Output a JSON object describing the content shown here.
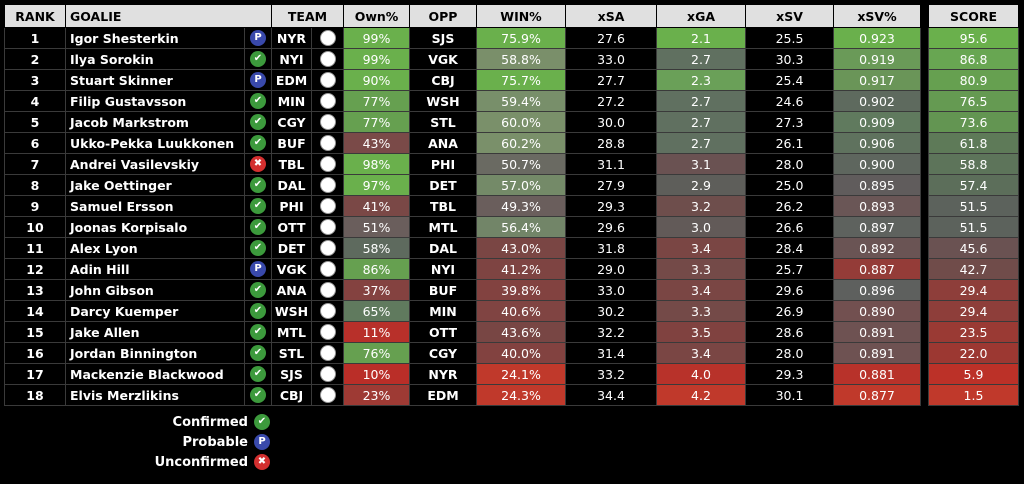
{
  "headers": {
    "rank": "RANK",
    "goalie": "GOALIE",
    "team": "TEAM",
    "own": "Own%",
    "opp": "OPP",
    "win": "WIN%",
    "xsa": "xSA",
    "xga": "xGA",
    "xsv": "xSV",
    "xsvpct": "xSV%",
    "score": "SCORE"
  },
  "colors": {
    "high": "#6ab04c",
    "mid": "#5a5a5a",
    "low": "#c0392b",
    "confirmed": "#3c9a3c",
    "probable": "#3949ab",
    "unconfirmed": "#d32f2f"
  },
  "rows": [
    {
      "rank": "1",
      "goalie": "Igor Shesterkin",
      "status": "probable",
      "team": "NYR",
      "own": "99%",
      "opp": "SJS",
      "win": "75.9%",
      "xsa": "27.6",
      "xga": "2.1",
      "xsv": "25.5",
      "xsvpct": "0.923",
      "score": "95.6",
      "c_own": "#6ab04c",
      "c_win": "#6ab04c",
      "c_xga": "#6ab04c",
      "c_xsvpct": "#6ab04c",
      "c_score": "#6ab04c"
    },
    {
      "rank": "2",
      "goalie": "Ilya Sorokin",
      "status": "confirmed",
      "team": "NYI",
      "own": "99%",
      "opp": "VGK",
      "win": "58.8%",
      "xsa": "33.0",
      "xga": "2.7",
      "xsv": "30.3",
      "xsvpct": "0.919",
      "score": "86.8",
      "c_own": "#6ab04c",
      "c_win": "#7a8f6a",
      "c_xga": "#607060",
      "c_xsvpct": "#6a9a58",
      "c_score": "#68a652"
    },
    {
      "rank": "3",
      "goalie": "Stuart Skinner",
      "status": "probable",
      "team": "EDM",
      "own": "90%",
      "opp": "CBJ",
      "win": "75.7%",
      "xsa": "27.7",
      "xga": "2.3",
      "xsv": "25.4",
      "xsvpct": "0.917",
      "score": "80.9",
      "c_own": "#6ab04c",
      "c_win": "#6ab04c",
      "c_xga": "#6aa058",
      "c_xsvpct": "#6a9558",
      "c_score": "#66a050"
    },
    {
      "rank": "4",
      "goalie": "Filip Gustavsson",
      "status": "confirmed",
      "team": "MIN",
      "own": "77%",
      "opp": "WSH",
      "win": "59.4%",
      "xsa": "27.2",
      "xga": "2.7",
      "xsv": "24.6",
      "xsvpct": "0.902",
      "score": "76.5",
      "c_own": "#66a050",
      "c_win": "#788f6a",
      "c_xga": "#607060",
      "c_xsvpct": "#5e6a5e",
      "c_score": "#659a52"
    },
    {
      "rank": "5",
      "goalie": "Jacob Markstrom",
      "status": "confirmed",
      "team": "CGY",
      "own": "77%",
      "opp": "STL",
      "win": "60.0%",
      "xsa": "30.0",
      "xga": "2.7",
      "xsv": "27.3",
      "xsvpct": "0.909",
      "score": "73.6",
      "c_own": "#66a050",
      "c_win": "#7a906a",
      "c_xga": "#607060",
      "c_xsvpct": "#607a5e",
      "c_score": "#639552"
    },
    {
      "rank": "6",
      "goalie": "Ukko-Pekka Luukkonen",
      "status": "confirmed",
      "team": "BUF",
      "own": "43%",
      "opp": "ANA",
      "win": "60.2%",
      "xsa": "28.8",
      "xga": "2.7",
      "xsv": "26.1",
      "xsvpct": "0.906",
      "score": "61.8",
      "c_own": "#7a4a48",
      "c_win": "#7a906a",
      "c_xga": "#607060",
      "c_xsvpct": "#5f725e",
      "c_score": "#5e7a58"
    },
    {
      "rank": "7",
      "goalie": "Andrei Vasilevskiy",
      "status": "unconfirmed",
      "team": "TBL",
      "own": "98%",
      "opp": "PHI",
      "win": "50.7%",
      "xsa": "31.1",
      "xga": "3.1",
      "xsv": "28.0",
      "xsvpct": "0.900",
      "score": "58.8",
      "c_own": "#6ab04c",
      "c_win": "#6a6a62",
      "c_xga": "#6a5252",
      "c_xsvpct": "#5e665e",
      "c_score": "#5d745a"
    },
    {
      "rank": "8",
      "goalie": "Jake Oettinger",
      "status": "confirmed",
      "team": "DAL",
      "own": "97%",
      "opp": "DET",
      "win": "57.0%",
      "xsa": "27.9",
      "xga": "2.9",
      "xsv": "25.0",
      "xsvpct": "0.895",
      "score": "57.4",
      "c_own": "#6ab04c",
      "c_win": "#748a68",
      "c_xga": "#5e5e5a",
      "c_xsvpct": "#605c5c",
      "c_score": "#5c6e5a"
    },
    {
      "rank": "9",
      "goalie": "Samuel Ersson",
      "status": "confirmed",
      "team": "PHI",
      "own": "41%",
      "opp": "TBL",
      "win": "49.3%",
      "xsa": "29.3",
      "xga": "3.2",
      "xsv": "26.2",
      "xsvpct": "0.893",
      "score": "51.5",
      "c_own": "#7a4846",
      "c_win": "#6a5e5c",
      "c_xga": "#6e4e4c",
      "c_xsvpct": "#6a5656",
      "c_score": "#5c625c"
    },
    {
      "rank": "10",
      "goalie": "Joonas Korpisalo",
      "status": "confirmed",
      "team": "OTT",
      "own": "51%",
      "opp": "MTL",
      "win": "56.4%",
      "xsa": "29.6",
      "xga": "3.0",
      "xsv": "26.6",
      "xsvpct": "0.897",
      "score": "51.5",
      "c_own": "#6a5e5c",
      "c_win": "#728568",
      "c_xga": "#625a58",
      "c_xsvpct": "#5e625e",
      "c_score": "#5c625c"
    },
    {
      "rank": "11",
      "goalie": "Alex Lyon",
      "status": "confirmed",
      "team": "DET",
      "own": "58%",
      "opp": "DAL",
      "win": "43.0%",
      "xsa": "31.8",
      "xga": "3.4",
      "xsv": "28.4",
      "xsvpct": "0.892",
      "score": "45.6",
      "c_own": "#5e6a5e",
      "c_win": "#7a4644",
      "c_xga": "#7a4644",
      "c_xsvpct": "#6a5454",
      "c_score": "#6a5252"
    },
    {
      "rank": "12",
      "goalie": "Adin Hill",
      "status": "probable",
      "team": "VGK",
      "own": "86%",
      "opp": "NYI",
      "win": "41.2%",
      "xsa": "29.0",
      "xga": "3.3",
      "xsv": "25.7",
      "xsvpct": "0.887",
      "score": "42.7",
      "c_own": "#66a050",
      "c_win": "#7e4442",
      "c_xga": "#744a48",
      "c_xsvpct": "#943c38",
      "c_score": "#704c4a"
    },
    {
      "rank": "13",
      "goalie": "John Gibson",
      "status": "confirmed",
      "team": "ANA",
      "own": "37%",
      "opp": "BUF",
      "win": "39.8%",
      "xsa": "33.0",
      "xga": "3.4",
      "xsv": "29.6",
      "xsvpct": "0.896",
      "score": "29.4",
      "c_own": "#844240",
      "c_win": "#824240",
      "c_xga": "#7a4644",
      "c_xsvpct": "#5e605e",
      "c_score": "#8e3e3a"
    },
    {
      "rank": "14",
      "goalie": "Darcy Kuemper",
      "status": "confirmed",
      "team": "WSH",
      "own": "65%",
      "opp": "MIN",
      "win": "40.6%",
      "xsa": "30.2",
      "xga": "3.3",
      "xsv": "26.9",
      "xsvpct": "0.890",
      "score": "29.4",
      "c_own": "#607a5e",
      "c_win": "#804442",
      "c_xga": "#744a48",
      "c_xsvpct": "#725050",
      "c_score": "#8e3e3a"
    },
    {
      "rank": "15",
      "goalie": "Jake Allen",
      "status": "confirmed",
      "team": "MTL",
      "own": "11%",
      "opp": "OTT",
      "win": "43.6%",
      "xsa": "32.2",
      "xga": "3.5",
      "xsv": "28.6",
      "xsvpct": "0.891",
      "score": "23.5",
      "c_own": "#b8302a",
      "c_win": "#784644",
      "c_xga": "#804240",
      "c_xsvpct": "#6e5252",
      "c_score": "#9a3a34"
    },
    {
      "rank": "16",
      "goalie": "Jordan Binnington",
      "status": "confirmed",
      "team": "STL",
      "own": "76%",
      "opp": "CGY",
      "win": "40.0%",
      "xsa": "31.4",
      "xga": "3.4",
      "xsv": "28.0",
      "xsvpct": "0.891",
      "score": "22.0",
      "c_own": "#66a050",
      "c_win": "#824240",
      "c_xga": "#7a4644",
      "c_xsvpct": "#6e5252",
      "c_score": "#9c3832"
    },
    {
      "rank": "17",
      "goalie": "Mackenzie Blackwood",
      "status": "confirmed",
      "team": "SJS",
      "own": "10%",
      "opp": "NYR",
      "win": "24.1%",
      "xsa": "33.2",
      "xga": "4.0",
      "xsv": "29.3",
      "xsvpct": "0.881",
      "score": "5.9",
      "c_own": "#ba2e28",
      "c_win": "#c0392b",
      "c_xga": "#b8322a",
      "c_xsvpct": "#b8322a",
      "c_score": "#bc3128"
    },
    {
      "rank": "18",
      "goalie": "Elvis Merzlikins",
      "status": "confirmed",
      "team": "CBJ",
      "own": "23%",
      "opp": "EDM",
      "win": "24.3%",
      "xsa": "34.4",
      "xga": "4.2",
      "xsv": "30.1",
      "xsvpct": "0.877",
      "score": "1.5",
      "c_own": "#9e3a34",
      "c_win": "#c0392b",
      "c_xga": "#c0392b",
      "c_xsvpct": "#c0392b",
      "c_score": "#c0392b"
    }
  ],
  "legend": [
    {
      "label": "Confirmed",
      "status": "confirmed"
    },
    {
      "label": "Probable",
      "status": "probable"
    },
    {
      "label": "Unconfirmed",
      "status": "unconfirmed"
    }
  ]
}
